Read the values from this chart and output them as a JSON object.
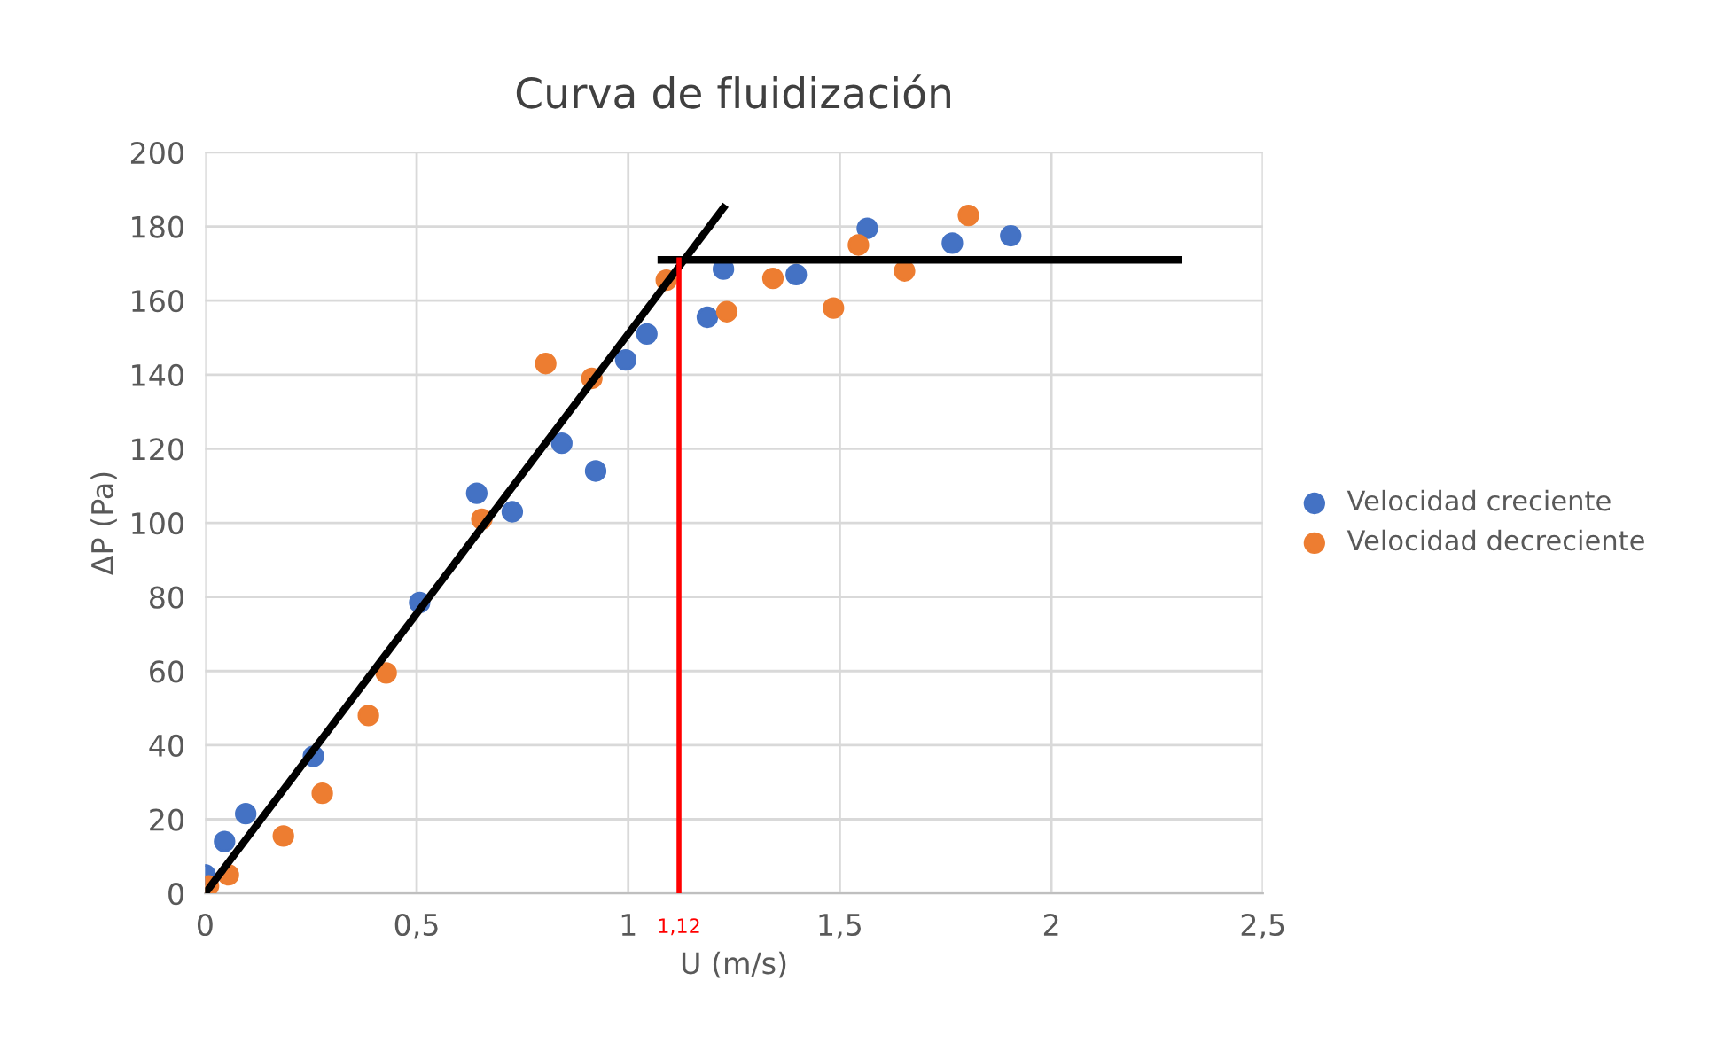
{
  "chart_data": {
    "type": "scatter",
    "title": "Curva de fluidización",
    "xlabel": "U (m/s)",
    "ylabel": "ΔP (Pa)",
    "xlim": [
      0,
      2.5
    ],
    "xticks": [
      0,
      {
        "value": 0.5,
        "label": "0,5"
      },
      1,
      {
        "value": 1.5,
        "label": "1,5"
      },
      2,
      {
        "value": 2.5,
        "label": "2,5"
      }
    ],
    "ylim": [
      0,
      200
    ],
    "yticks": [
      0,
      20,
      40,
      60,
      80,
      100,
      120,
      140,
      160,
      180,
      200
    ],
    "grid": true,
    "legend": "right",
    "marker": "circle",
    "series": [
      {
        "name": "Velocidad creciente",
        "color": "#4472c4",
        "x": [
          0.0,
          0.046,
          0.096,
          0.256,
          0.507,
          0.642,
          0.726,
          0.843,
          0.923,
          0.994,
          1.044,
          1.187,
          1.225,
          1.397,
          1.565,
          1.766,
          1.904
        ],
        "values": [
          5,
          14,
          21.5,
          37,
          78.5,
          108,
          103,
          121.5,
          114,
          144,
          151,
          155.5,
          168.5,
          167,
          179.5,
          175.5,
          177.5
        ]
      },
      {
        "name": "Velocidad decreciente",
        "color": "#ed7d31",
        "x": [
          0.008,
          0.055,
          0.185,
          0.277,
          0.386,
          0.428,
          0.654,
          0.805,
          0.914,
          1.09,
          1.233,
          1.342,
          1.485,
          1.544,
          1.653,
          1.804
        ],
        "values": [
          2,
          5,
          15.5,
          27,
          48,
          59.5,
          101,
          143,
          139,
          165.5,
          157,
          166,
          158,
          175,
          168,
          183
        ]
      },
      {
        "type": "line",
        "marker": "none",
        "color": "#000000",
        "x": [
          0,
          1.225
        ],
        "values": [
          0,
          185
        ]
      },
      {
        "type": "line",
        "marker": "none",
        "color": "#000000",
        "x": [
          1.078,
          2.3
        ],
        "values": [
          171,
          171
        ]
      },
      {
        "type": "line",
        "marker": "none",
        "color": "#ff0000",
        "x": [
          1.12,
          1.12
        ],
        "values": [
          0,
          171
        ]
      }
    ],
    "annotations": [
      {
        "text": "1,12",
        "x": 1.12,
        "y": 0
      }
    ]
  }
}
